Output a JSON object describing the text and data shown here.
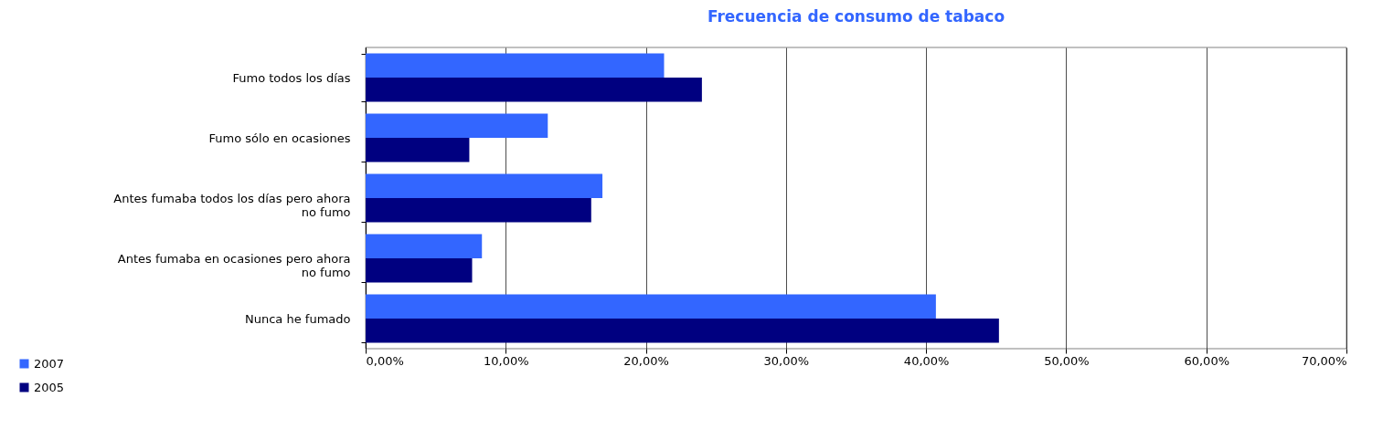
{
  "chart_data": {
    "type": "bar",
    "orientation": "horizontal",
    "title": "Frecuencia de consumo de tabaco",
    "categories": [
      "Fumo todos los días",
      "Fumo sólo en ocasiones",
      "Antes fumaba todos los días pero ahora no fumo",
      "Antes fumaba en ocasiones pero ahora no fumo",
      "Nunca he fumado"
    ],
    "series": [
      {
        "name": "2007",
        "color": "#3366ff",
        "values": [
          21.3,
          13.0,
          16.9,
          8.3,
          40.7
        ]
      },
      {
        "name": "2005",
        "color": "#000080",
        "values": [
          24.0,
          7.4,
          16.1,
          7.6,
          45.2
        ]
      }
    ],
    "xlim": [
      0,
      70
    ],
    "xticks": [
      {
        "value": 0,
        "label": "0,00%"
      },
      {
        "value": 10,
        "label": "10,00%"
      },
      {
        "value": 20,
        "label": "20,00%"
      },
      {
        "value": 30,
        "label": "30,00%"
      },
      {
        "value": 40,
        "label": "40,00%"
      },
      {
        "value": 50,
        "label": "50,00%"
      },
      {
        "value": 60,
        "label": "60,00%"
      },
      {
        "value": 70,
        "label": "70,00%"
      }
    ],
    "grid": "x",
    "legend": "bottom left"
  }
}
